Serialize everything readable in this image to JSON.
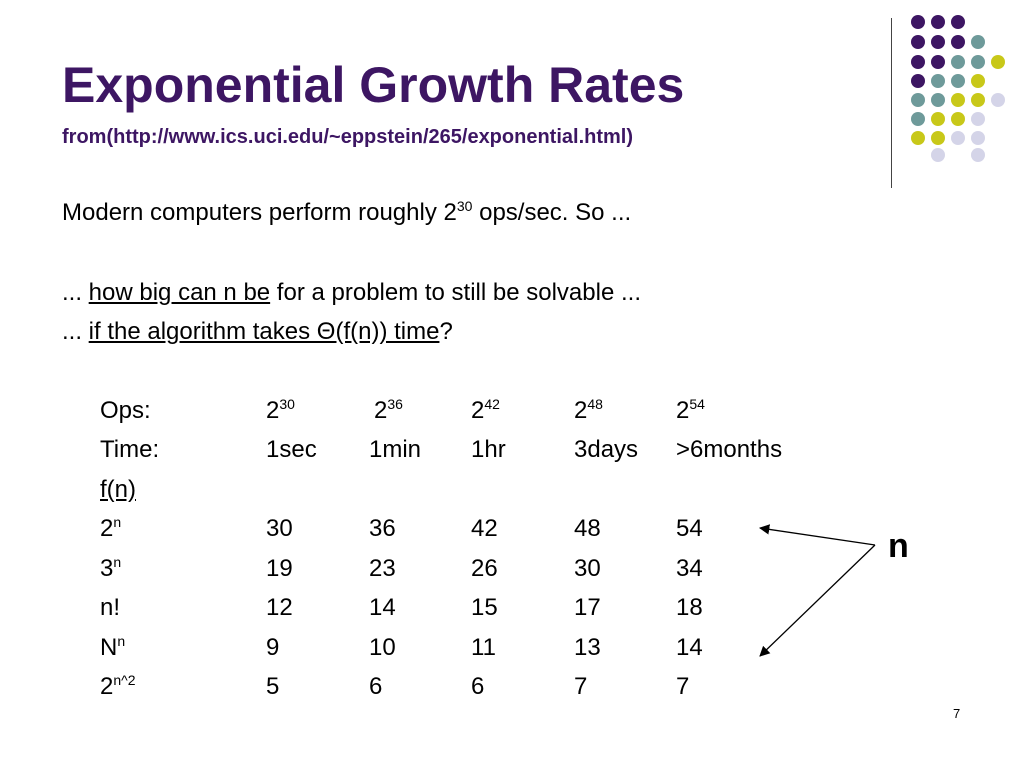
{
  "title": "Exponential Growth Rates",
  "subtitle": "from(http://www.ics.uci.edu/~eppstein/265/exponential.html)",
  "intro": {
    "pre": "Modern computers perform roughly 2",
    "sup": "30",
    "post": " ops/sec. So ..."
  },
  "q1": {
    "pre": "... ",
    "link": "how big can n be",
    "post": " for a problem to still be solvable ..."
  },
  "q2": {
    "pre": "... ",
    "link": "if the algorithm takes Θ(f(n)) time",
    "post": "?"
  },
  "table": {
    "ops_label": "Ops:",
    "ops": [
      {
        "base": "2",
        "exp": "30"
      },
      {
        "base": "2",
        "exp": "36"
      },
      {
        "base": "2",
        "exp": "42"
      },
      {
        "base": "2",
        "exp": "48"
      },
      {
        "base": "2",
        "exp": "54"
      }
    ],
    "time_label": "Time:",
    "times": [
      "1sec",
      "1min",
      "1hr",
      "3days",
      ">6months"
    ],
    "fn_header": "f(n)",
    "rows": [
      {
        "base": "2",
        "exp": "n",
        "values": [
          "30",
          "36",
          "42",
          "48",
          "54"
        ]
      },
      {
        "base": "3",
        "exp": "n",
        "values": [
          "19",
          "23",
          "26",
          "30",
          "34"
        ]
      },
      {
        "base": "n!",
        "exp": "",
        "values": [
          "12",
          "14",
          "15",
          "17",
          "18"
        ]
      },
      {
        "base": "N",
        "exp": "n",
        "values": [
          "9",
          "10",
          "11",
          "13",
          "14"
        ]
      },
      {
        "base": "2",
        "exp": "n^2",
        "values": [
          "5",
          "6",
          "6",
          "7",
          "7"
        ]
      }
    ]
  },
  "n_label": "n",
  "slide_number": "7",
  "colors": {
    "title": "#3d1663",
    "dot_purple": "#3d1663",
    "dot_teal": "#6e9a9a",
    "dot_yellow": "#c8c819",
    "dot_lavender": "#d4d4e8"
  }
}
